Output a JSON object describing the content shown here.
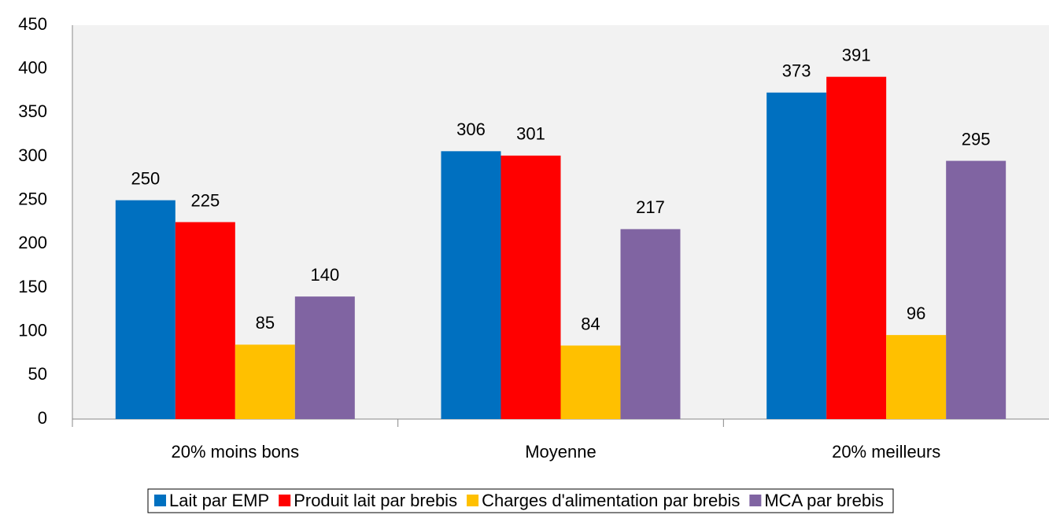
{
  "chart_data": {
    "type": "bar",
    "categories": [
      "20% moins bons",
      "Moyenne",
      "20% meilleurs"
    ],
    "series": [
      {
        "name": "Lait par EMP",
        "color": "#0070c0",
        "values": [
          250,
          306,
          373
        ]
      },
      {
        "name": "Produit lait par brebis",
        "color": "#ff0000",
        "values": [
          225,
          301,
          391
        ]
      },
      {
        "name": "Charges d'alimentation par brebis",
        "color": "#ffc000",
        "values": [
          85,
          84,
          96
        ]
      },
      {
        "name": "MCA par brebis",
        "color": "#8064a2",
        "values": [
          140,
          217,
          295
        ]
      }
    ],
    "ylim": [
      0,
      450
    ],
    "yticks": [
      0,
      50,
      100,
      150,
      200,
      250,
      300,
      350,
      400,
      450
    ],
    "grid": false,
    "legend": "bottom"
  }
}
